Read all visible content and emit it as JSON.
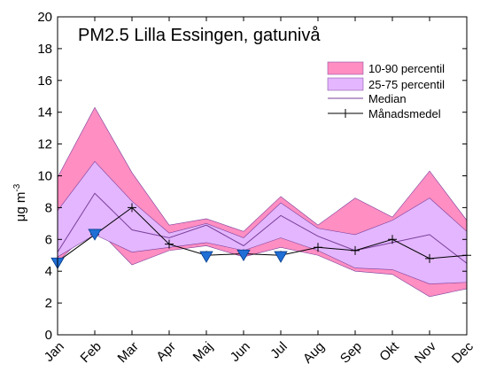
{
  "chart_data": {
    "type": "area",
    "title": "PM2.5 Lilla Essingen, gatunivå",
    "ylabel": "μg m",
    "ylabel_exponent": "-3",
    "xlabel": "",
    "ylim": [
      0,
      20
    ],
    "yticks": [
      0,
      2,
      4,
      6,
      8,
      10,
      12,
      14,
      16,
      18,
      20
    ],
    "categories": [
      "Jan",
      "Feb",
      "Mar",
      "Apr",
      "Maj",
      "Jun",
      "Jul",
      "Aug",
      "Sep",
      "Okt",
      "Nov",
      "Dec"
    ],
    "grid": false,
    "legend_placement": "top-right",
    "series": [
      {
        "name": "10-90 percentil",
        "kind": "band",
        "color": "#ff8ec2",
        "lower": [
          4.6,
          6.8,
          4.4,
          5.3,
          5.6,
          4.9,
          5.5,
          5.0,
          4.0,
          3.8,
          2.4,
          2.9
        ],
        "upper": [
          9.9,
          14.3,
          10.2,
          6.9,
          7.3,
          6.5,
          8.7,
          6.9,
          8.6,
          7.4,
          10.3,
          7.2
        ]
      },
      {
        "name": "25-75 percentil",
        "kind": "band",
        "color": "#e3b6ff",
        "lower": [
          4.9,
          6.3,
          5.2,
          5.5,
          5.8,
          5.3,
          6.1,
          5.3,
          4.2,
          4.1,
          3.2,
          3.3
        ],
        "upper": [
          7.8,
          10.9,
          8.4,
          6.4,
          7.0,
          6.1,
          8.3,
          6.7,
          6.3,
          7.2,
          8.6,
          6.5
        ]
      },
      {
        "name": "Median",
        "kind": "line",
        "color": "#7a3f9a",
        "values": [
          5.2,
          8.9,
          6.6,
          6.1,
          6.9,
          5.6,
          7.5,
          6.2,
          5.3,
          5.8,
          6.3,
          4.5
        ]
      },
      {
        "name": "Månadsmedel",
        "kind": "line-marker",
        "color": "#000000",
        "values": [
          4.6,
          6.3,
          8.0,
          5.7,
          5.0,
          5.1,
          5.0,
          5.5,
          5.3,
          6.0,
          4.8,
          5.0
        ]
      },
      {
        "kind": "triangle-markers",
        "color": "#1f6fd6",
        "points": [
          {
            "x": "Jan",
            "y": 4.5
          },
          {
            "x": "Feb",
            "y": 6.3
          },
          {
            "x": "Maj",
            "y": 4.9
          },
          {
            "x": "Jun",
            "y": 5.0
          },
          {
            "x": "Jul",
            "y": 4.9
          }
        ]
      }
    ]
  }
}
